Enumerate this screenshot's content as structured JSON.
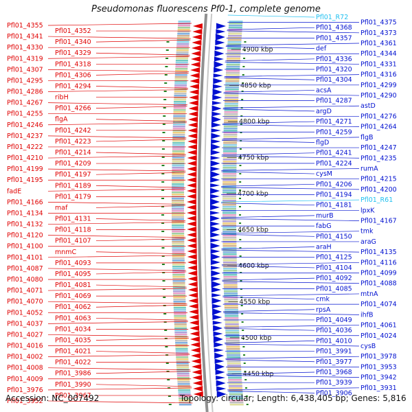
{
  "title": "Pseudomonas fluorescens Pf0-1, complete genome",
  "footer": {
    "accession": "Accession: NC_007492",
    "info": "Topology: circular; Length: 6,438,405 bp; Genes: 5,816"
  },
  "colors": {
    "reverse_strand": "#e00000",
    "forward_strand": "#0010d0",
    "rna": "#20c0f0",
    "backbone": "#909090",
    "gc_marker": "#208020"
  },
  "scale_ticks": [
    "4900 kbp",
    "4850 kbp",
    "4800 kbp",
    "4750 kbp",
    "4700 kbp",
    "4650 kbp",
    "4600 kbp",
    "4550 kbp",
    "4500 kbp",
    "4450 kbp"
  ],
  "left_labels": [
    "Pfl01_4355",
    "Pfl01_4352",
    "Pfl01_4341",
    "Pfl01_4340",
    "Pfl01_4330",
    "Pfl01_4329",
    "Pfl01_4319",
    "Pfl01_4318",
    "Pfl01_4307",
    "Pfl01_4306",
    "Pfl01_4295",
    "Pfl01_4294",
    "Pfl01_4286",
    "ribH",
    "Pfl01_4267",
    "Pfl01_4266",
    "Pfl01_4255",
    "flgA",
    "Pfl01_4246",
    "Pfl01_4242",
    "Pfl01_4237",
    "Pfl01_4223",
    "Pfl01_4222",
    "Pfl01_4214",
    "Pfl01_4210",
    "Pfl01_4209",
    "Pfl01_4199",
    "Pfl01_4197",
    "Pfl01_4195",
    "Pfl01_4189",
    "fadE",
    "Pfl01_4179",
    "Pfl01_4166",
    "maf",
    "Pfl01_4134",
    "Pfl01_4131",
    "Pfl01_4132",
    "Pfl01_4118",
    "Pfl01_4120",
    "Pfl01_4107",
    "Pfl01_4100",
    "mnmC",
    "Pfl01_4101",
    "Pfl01_4093",
    "Pfl01_4087",
    "Pfl01_4095",
    "Pfl01_4080",
    "Pfl01_4081",
    "Pfl01_4071",
    "Pfl01_4069",
    "Pfl01_4070",
    "Pfl01_4062",
    "Pfl01_4052",
    "Pfl01_4063",
    "Pfl01_4037",
    "Pfl01_4034",
    "Pfl01_4027",
    "Pfl01_4035",
    "Pfl01_4016",
    "Pfl01_4021",
    "Pfl01_4002",
    "Pfl01_4022",
    "Pfl01_4008",
    "Pfl01_3986",
    "Pfl01_4009",
    "Pfl01_3990",
    "Pfl01_3976",
    "Pfl01_3967",
    "Pfl01_3952"
  ],
  "right_labels": [
    "Pfl01_R72",
    "Pfl01_4375",
    "Pfl01_4368",
    "Pfl01_4373",
    "Pfl01_4357",
    "Pfl01_4361",
    "def",
    "Pfl01_4344",
    "Pfl01_4336",
    "Pfl01_4331",
    "Pfl01_4320",
    "Pfl01_4316",
    "Pfl01_4304",
    "Pfl01_4299",
    "acsA",
    "Pfl01_4290",
    "Pfl01_4287",
    "astD",
    "argD",
    "Pfl01_4276",
    "Pfl01_4271",
    "Pfl01_4264",
    "Pfl01_4259",
    "flgB",
    "flgD",
    "Pfl01_4247",
    "Pfl01_4241",
    "Pfl01_4235",
    "Pfl01_4224",
    "rumA",
    "cysM",
    "Pfl01_4215",
    "Pfl01_4206",
    "Pfl01_4200",
    "Pfl01_4194",
    "Pfl01_R61",
    "Pfl01_4181",
    "lpxK",
    "murB",
    "Pfl01_4167",
    "fabG",
    "tmk",
    "Pfl01_4150",
    "araG",
    "araH",
    "Pfl01_4135",
    "Pfl01_4125",
    "Pfl01_4116",
    "Pfl01_4104",
    "Pfl01_4099",
    "Pfl01_4092",
    "Pfl01_4088",
    "Pfl01_4085",
    "mtnA",
    "cmk",
    "Pfl01_4074",
    "rpsA",
    "ihfB",
    "Pfl01_4049",
    "Pfl01_4061",
    "Pfl01_4036",
    "Pfl01_4024",
    "Pfl01_4010",
    "cysB",
    "Pfl01_3991",
    "Pfl01_3978",
    "Pfl01_3977",
    "Pfl01_3953",
    "Pfl01_3968",
    "Pfl01_3942",
    "Pfl01_3939",
    "Pfl01_3931",
    "Pfl01_3906"
  ]
}
